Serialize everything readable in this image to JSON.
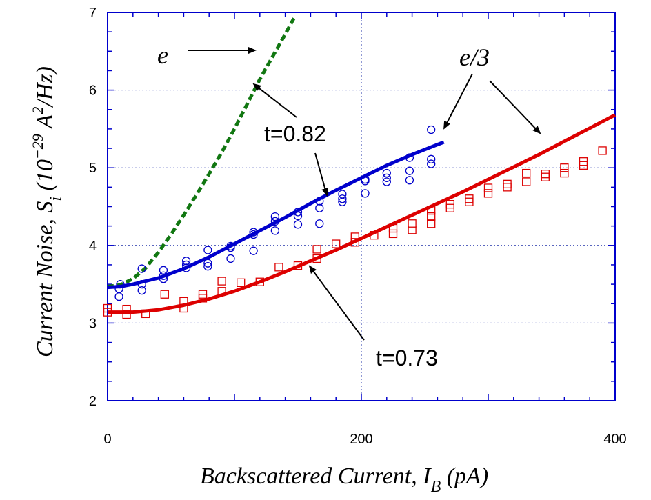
{
  "chart_data": {
    "type": "scatter",
    "xlabel": "Backscattered Current, I",
    "xlabel_sub": "B",
    "xlabel_unit": " (pA)",
    "ylabel": "Current Noise, S",
    "ylabel_sub": "i",
    "ylabel_unit": " (10",
    "ylabel_exp": "−29",
    "ylabel_unit2": " A",
    "ylabel_exp2": "2",
    "ylabel_unit3": "/Hz)",
    "xlim": [
      0,
      400
    ],
    "ylim": [
      2,
      7
    ],
    "x_ticks": [
      0,
      200,
      400
    ],
    "y_ticks": [
      2,
      3,
      4,
      5,
      6,
      7
    ],
    "grid": true,
    "colors": {
      "blue": "#0000cc",
      "red": "#dd0000",
      "green": "#117711",
      "grid": "#2233aa"
    },
    "series": [
      {
        "name": "t=0.82",
        "marker": "circle",
        "color": "#0000cc",
        "points": [
          [
            9,
            3.34
          ],
          [
            9,
            3.44
          ],
          [
            10,
            3.5
          ],
          [
            27,
            3.42
          ],
          [
            27,
            3.5
          ],
          [
            27,
            3.7
          ],
          [
            44,
            3.57
          ],
          [
            44,
            3.61
          ],
          [
            44,
            3.68
          ],
          [
            62,
            3.71
          ],
          [
            62,
            3.75
          ],
          [
            62,
            3.8
          ],
          [
            79,
            3.73
          ],
          [
            79,
            3.77
          ],
          [
            79,
            3.94
          ],
          [
            97,
            3.83
          ],
          [
            97,
            3.97
          ],
          [
            97,
            3.99
          ],
          [
            115,
            3.93
          ],
          [
            115,
            4.14
          ],
          [
            115,
            4.17
          ],
          [
            132,
            4.19
          ],
          [
            132,
            4.31
          ],
          [
            132,
            4.37
          ],
          [
            150,
            4.27
          ],
          [
            150,
            4.38
          ],
          [
            150,
            4.43
          ],
          [
            167,
            4.28
          ],
          [
            167,
            4.48
          ],
          [
            167,
            4.57
          ],
          [
            185,
            4.56
          ],
          [
            185,
            4.6
          ],
          [
            185,
            4.66
          ],
          [
            203,
            4.67
          ],
          [
            203,
            4.83
          ],
          [
            203,
            4.85
          ],
          [
            220,
            4.82
          ],
          [
            220,
            4.87
          ],
          [
            220,
            4.93
          ],
          [
            238,
            4.84
          ],
          [
            238,
            4.96
          ],
          [
            238,
            5.13
          ],
          [
            255,
            5.05
          ],
          [
            255,
            5.11
          ],
          [
            255,
            5.49
          ]
        ]
      },
      {
        "name": "t=0.73",
        "marker": "square",
        "color": "#dd0000",
        "points": [
          [
            0,
            3.14
          ],
          [
            0,
            3.19
          ],
          [
            15,
            3.11
          ],
          [
            15,
            3.18
          ],
          [
            30,
            3.12
          ],
          [
            45,
            3.37
          ],
          [
            60,
            3.19
          ],
          [
            60,
            3.28
          ],
          [
            75,
            3.32
          ],
          [
            75,
            3.37
          ],
          [
            90,
            3.41
          ],
          [
            90,
            3.54
          ],
          [
            105,
            3.52
          ],
          [
            120,
            3.53
          ],
          [
            135,
            3.72
          ],
          [
            150,
            3.74
          ],
          [
            165,
            3.83
          ],
          [
            165,
            3.95
          ],
          [
            180,
            4.02
          ],
          [
            195,
            4.04
          ],
          [
            195,
            4.11
          ],
          [
            210,
            4.13
          ],
          [
            225,
            4.15
          ],
          [
            225,
            4.22
          ],
          [
            240,
            4.2
          ],
          [
            240,
            4.28
          ],
          [
            255,
            4.28
          ],
          [
            255,
            4.37
          ],
          [
            255,
            4.45
          ],
          [
            270,
            4.48
          ],
          [
            270,
            4.53
          ],
          [
            285,
            4.56
          ],
          [
            285,
            4.6
          ],
          [
            300,
            4.67
          ],
          [
            300,
            4.74
          ],
          [
            315,
            4.75
          ],
          [
            315,
            4.79
          ],
          [
            330,
            4.82
          ],
          [
            330,
            4.93
          ],
          [
            345,
            4.88
          ],
          [
            345,
            4.92
          ],
          [
            360,
            4.93
          ],
          [
            360,
            5.0
          ],
          [
            375,
            5.03
          ],
          [
            375,
            5.08
          ],
          [
            390,
            5.22
          ]
        ]
      },
      {
        "name": "e",
        "type": "line",
        "style": "dashed",
        "color": "#117711",
        "x": [
          0,
          10,
          20,
          30,
          40,
          50,
          60,
          70,
          80,
          90,
          100,
          110,
          120,
          130,
          140,
          147
        ],
        "y": [
          3.47,
          3.49,
          3.57,
          3.71,
          3.91,
          4.14,
          4.39,
          4.65,
          4.92,
          5.2,
          5.5,
          5.82,
          6.14,
          6.43,
          6.72,
          6.93
        ]
      },
      {
        "name": "t=0.82 fit",
        "type": "line",
        "color": "#0000cc",
        "x": [
          0,
          10,
          20,
          40,
          60,
          80,
          100,
          120,
          140,
          160,
          180,
          200,
          220,
          240,
          265
        ],
        "y": [
          3.46,
          3.47,
          3.5,
          3.58,
          3.7,
          3.85,
          4.02,
          4.19,
          4.36,
          4.54,
          4.71,
          4.87,
          5.03,
          5.17,
          5.33
        ]
      },
      {
        "name": "t=0.73 fit",
        "type": "line",
        "color": "#dd0000",
        "x": [
          0,
          20,
          40,
          60,
          80,
          100,
          120,
          140,
          160,
          180,
          200,
          220,
          240,
          260,
          280,
          300,
          320,
          340,
          360,
          380,
          400
        ],
        "y": [
          3.14,
          3.14,
          3.17,
          3.23,
          3.31,
          3.41,
          3.53,
          3.66,
          3.8,
          3.94,
          4.09,
          4.24,
          4.39,
          4.54,
          4.69,
          4.85,
          5.01,
          5.17,
          5.34,
          5.51,
          5.68
        ]
      }
    ],
    "annotations": [
      {
        "text": "e",
        "style": "italic",
        "x": 43,
        "y": 6.45
      },
      {
        "text": "e/3",
        "style": "italic",
        "x": 290,
        "y": 6.45
      },
      {
        "text": "t=0.82",
        "style": "normal",
        "x": 135,
        "y": 5.35
      },
      {
        "text": "t=0.73",
        "style": "normal",
        "x": 242,
        "y": 2.33
      }
    ]
  }
}
